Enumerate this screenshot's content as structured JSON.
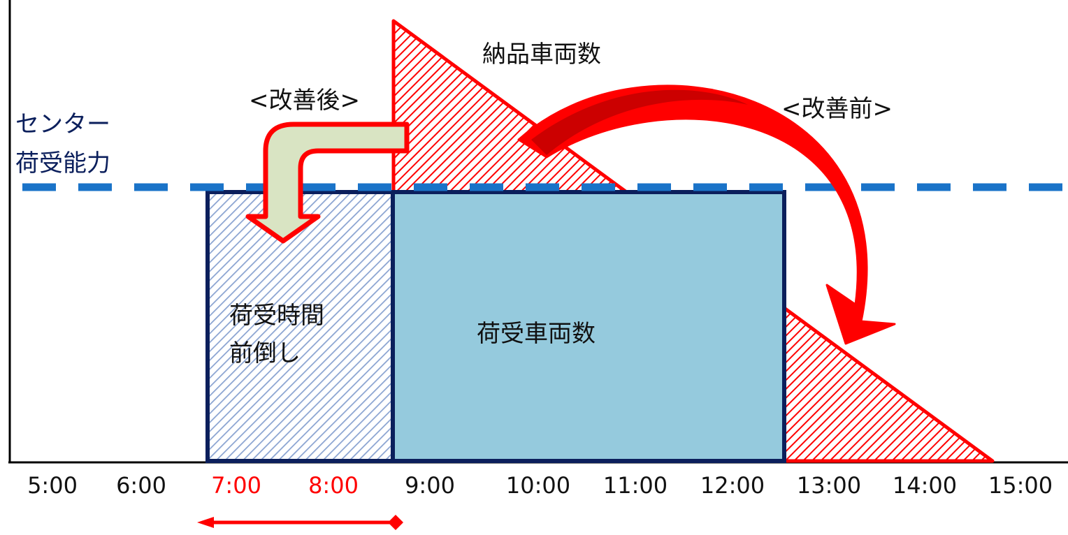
{
  "labels": {
    "center_capacity_line1": "センター",
    "center_capacity_line2": "荷受能力",
    "after": "<改善後>",
    "before": "<改善前>",
    "delivery_vehicles": "納品車両数",
    "receiving_vehicles": "荷受車両数",
    "shift_line1": "荷受時間",
    "shift_line2": "前倒し"
  },
  "axis": {
    "ticks": [
      "5:00",
      "6:00",
      "7:00",
      "8:00",
      "9:00",
      "10:00",
      "11:00",
      "12:00",
      "13:00",
      "14:00",
      "15:00"
    ],
    "highlighted_ticks": [
      "7:00",
      "8:00"
    ]
  },
  "colors": {
    "red": "#ff0000",
    "dark_red": "#cc0000",
    "capacity_line": "#1a73c8",
    "box_border": "#0b1f5c",
    "box_fill": "#95cadd",
    "hatch_blue": "#8aa3d1",
    "arrow_fill": "#d9e4c3",
    "text_navy": "#0b1f5c"
  }
}
